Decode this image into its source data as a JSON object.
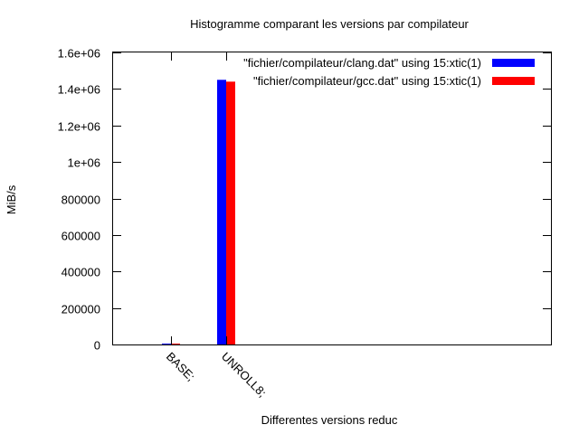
{
  "chart_data": {
    "type": "bar",
    "title": "Histogramme comparant les versions par compilateur",
    "xlabel": "Differentes versions reduc",
    "ylabel": "MiB/s",
    "categories": [
      "BASE;",
      "UNROLL8;"
    ],
    "series": [
      {
        "name": "\"fichier/compilateur/clang.dat\"  using 15:xtic(1)",
        "color": "#0000ff",
        "values": [
          4000,
          1450000
        ]
      },
      {
        "name": "\"fichier/compilateur/gcc.dat\"  using 15:xtic(1)",
        "color": "#ff0000",
        "values": [
          4000,
          1440000
        ]
      }
    ],
    "ylim": [
      0,
      1600000
    ],
    "yticks": [
      {
        "value": 0,
        "label": "0"
      },
      {
        "value": 200000,
        "label": "200000"
      },
      {
        "value": 400000,
        "label": "400000"
      },
      {
        "value": 600000,
        "label": "600000"
      },
      {
        "value": 800000,
        "label": "800000"
      },
      {
        "value": 1000000,
        "label": "1e+06"
      },
      {
        "value": 1200000,
        "label": "1.2e+06"
      },
      {
        "value": 1400000,
        "label": "1.4e+06"
      },
      {
        "value": 1600000,
        "label": "1.6e+06"
      }
    ],
    "grid": false,
    "legend_position": "top-right"
  }
}
